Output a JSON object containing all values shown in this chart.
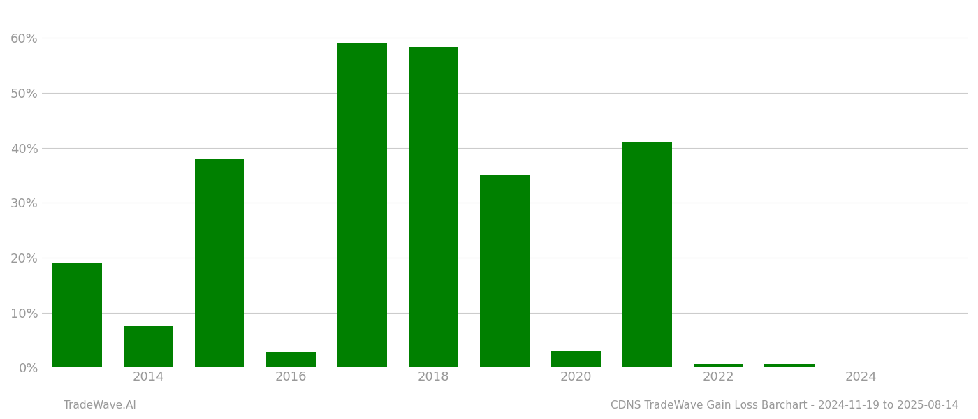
{
  "years": [
    2013,
    2014,
    2015,
    2016,
    2017,
    2018,
    2019,
    2020,
    2021,
    2022,
    2023,
    2024
  ],
  "values": [
    0.19,
    0.075,
    0.38,
    0.028,
    0.59,
    0.582,
    0.35,
    0.03,
    0.41,
    0.007,
    0.007,
    0.0
  ],
  "bar_color": "#008000",
  "background_color": "#ffffff",
  "grid_color": "#cccccc",
  "tick_label_color": "#999999",
  "footer_left": "TradeWave.AI",
  "footer_right": "CDNS TradeWave Gain Loss Barchart - 2024-11-19 to 2025-08-14",
  "footer_color": "#999999",
  "ylim": [
    0,
    0.65
  ],
  "yticks": [
    0.0,
    0.1,
    0.2,
    0.3,
    0.4,
    0.5,
    0.6
  ],
  "xticks": [
    2014,
    2016,
    2018,
    2020,
    2022,
    2024
  ],
  "xlim": [
    2012.5,
    2025.5
  ],
  "bar_width": 0.7,
  "footer_fontsize": 11,
  "tick_fontsize": 13
}
